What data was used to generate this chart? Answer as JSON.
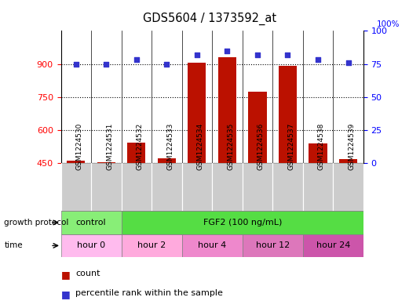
{
  "title": "GDS5604 / 1373592_at",
  "samples": [
    "GSM1224530",
    "GSM1224531",
    "GSM1224532",
    "GSM1224533",
    "GSM1224534",
    "GSM1224535",
    "GSM1224536",
    "GSM1224537",
    "GSM1224538",
    "GSM1224539"
  ],
  "counts": [
    460,
    455,
    545,
    472,
    905,
    930,
    775,
    890,
    540,
    470
  ],
  "percentile_ranks": [
    75,
    75,
    78,
    75,
    82,
    85,
    82,
    82,
    78,
    76
  ],
  "ylim_left": [
    450,
    1050
  ],
  "ylim_right": [
    0,
    100
  ],
  "yticks_left": [
    450,
    600,
    750,
    900
  ],
  "yticks_right": [
    0,
    25,
    50,
    75,
    100
  ],
  "bar_color": "#bb1100",
  "dot_color": "#3333cc",
  "grid_color": "#000000",
  "growth_protocol_groups": [
    {
      "label": "control",
      "start": 0,
      "end": 2,
      "color": "#88ee77"
    },
    {
      "label": "FGF2 (100 ng/mL)",
      "start": 2,
      "end": 10,
      "color": "#55dd44"
    }
  ],
  "time_groups": [
    {
      "label": "hour 0",
      "start": 0,
      "end": 2,
      "color": "#ffbbee"
    },
    {
      "label": "hour 2",
      "start": 2,
      "end": 4,
      "color": "#ffaadd"
    },
    {
      "label": "hour 4",
      "start": 4,
      "end": 6,
      "color": "#ee88cc"
    },
    {
      "label": "hour 12",
      "start": 6,
      "end": 8,
      "color": "#dd77bb"
    },
    {
      "label": "hour 24",
      "start": 8,
      "end": 10,
      "color": "#cc55aa"
    }
  ],
  "legend_count_label": "count",
  "legend_pct_label": "percentile rank within the sample",
  "legend_count_color": "#bb1100",
  "legend_pct_color": "#3333cc",
  "sample_box_color": "#cccccc",
  "fig_width": 5.35,
  "fig_height": 3.93,
  "dpi": 100
}
